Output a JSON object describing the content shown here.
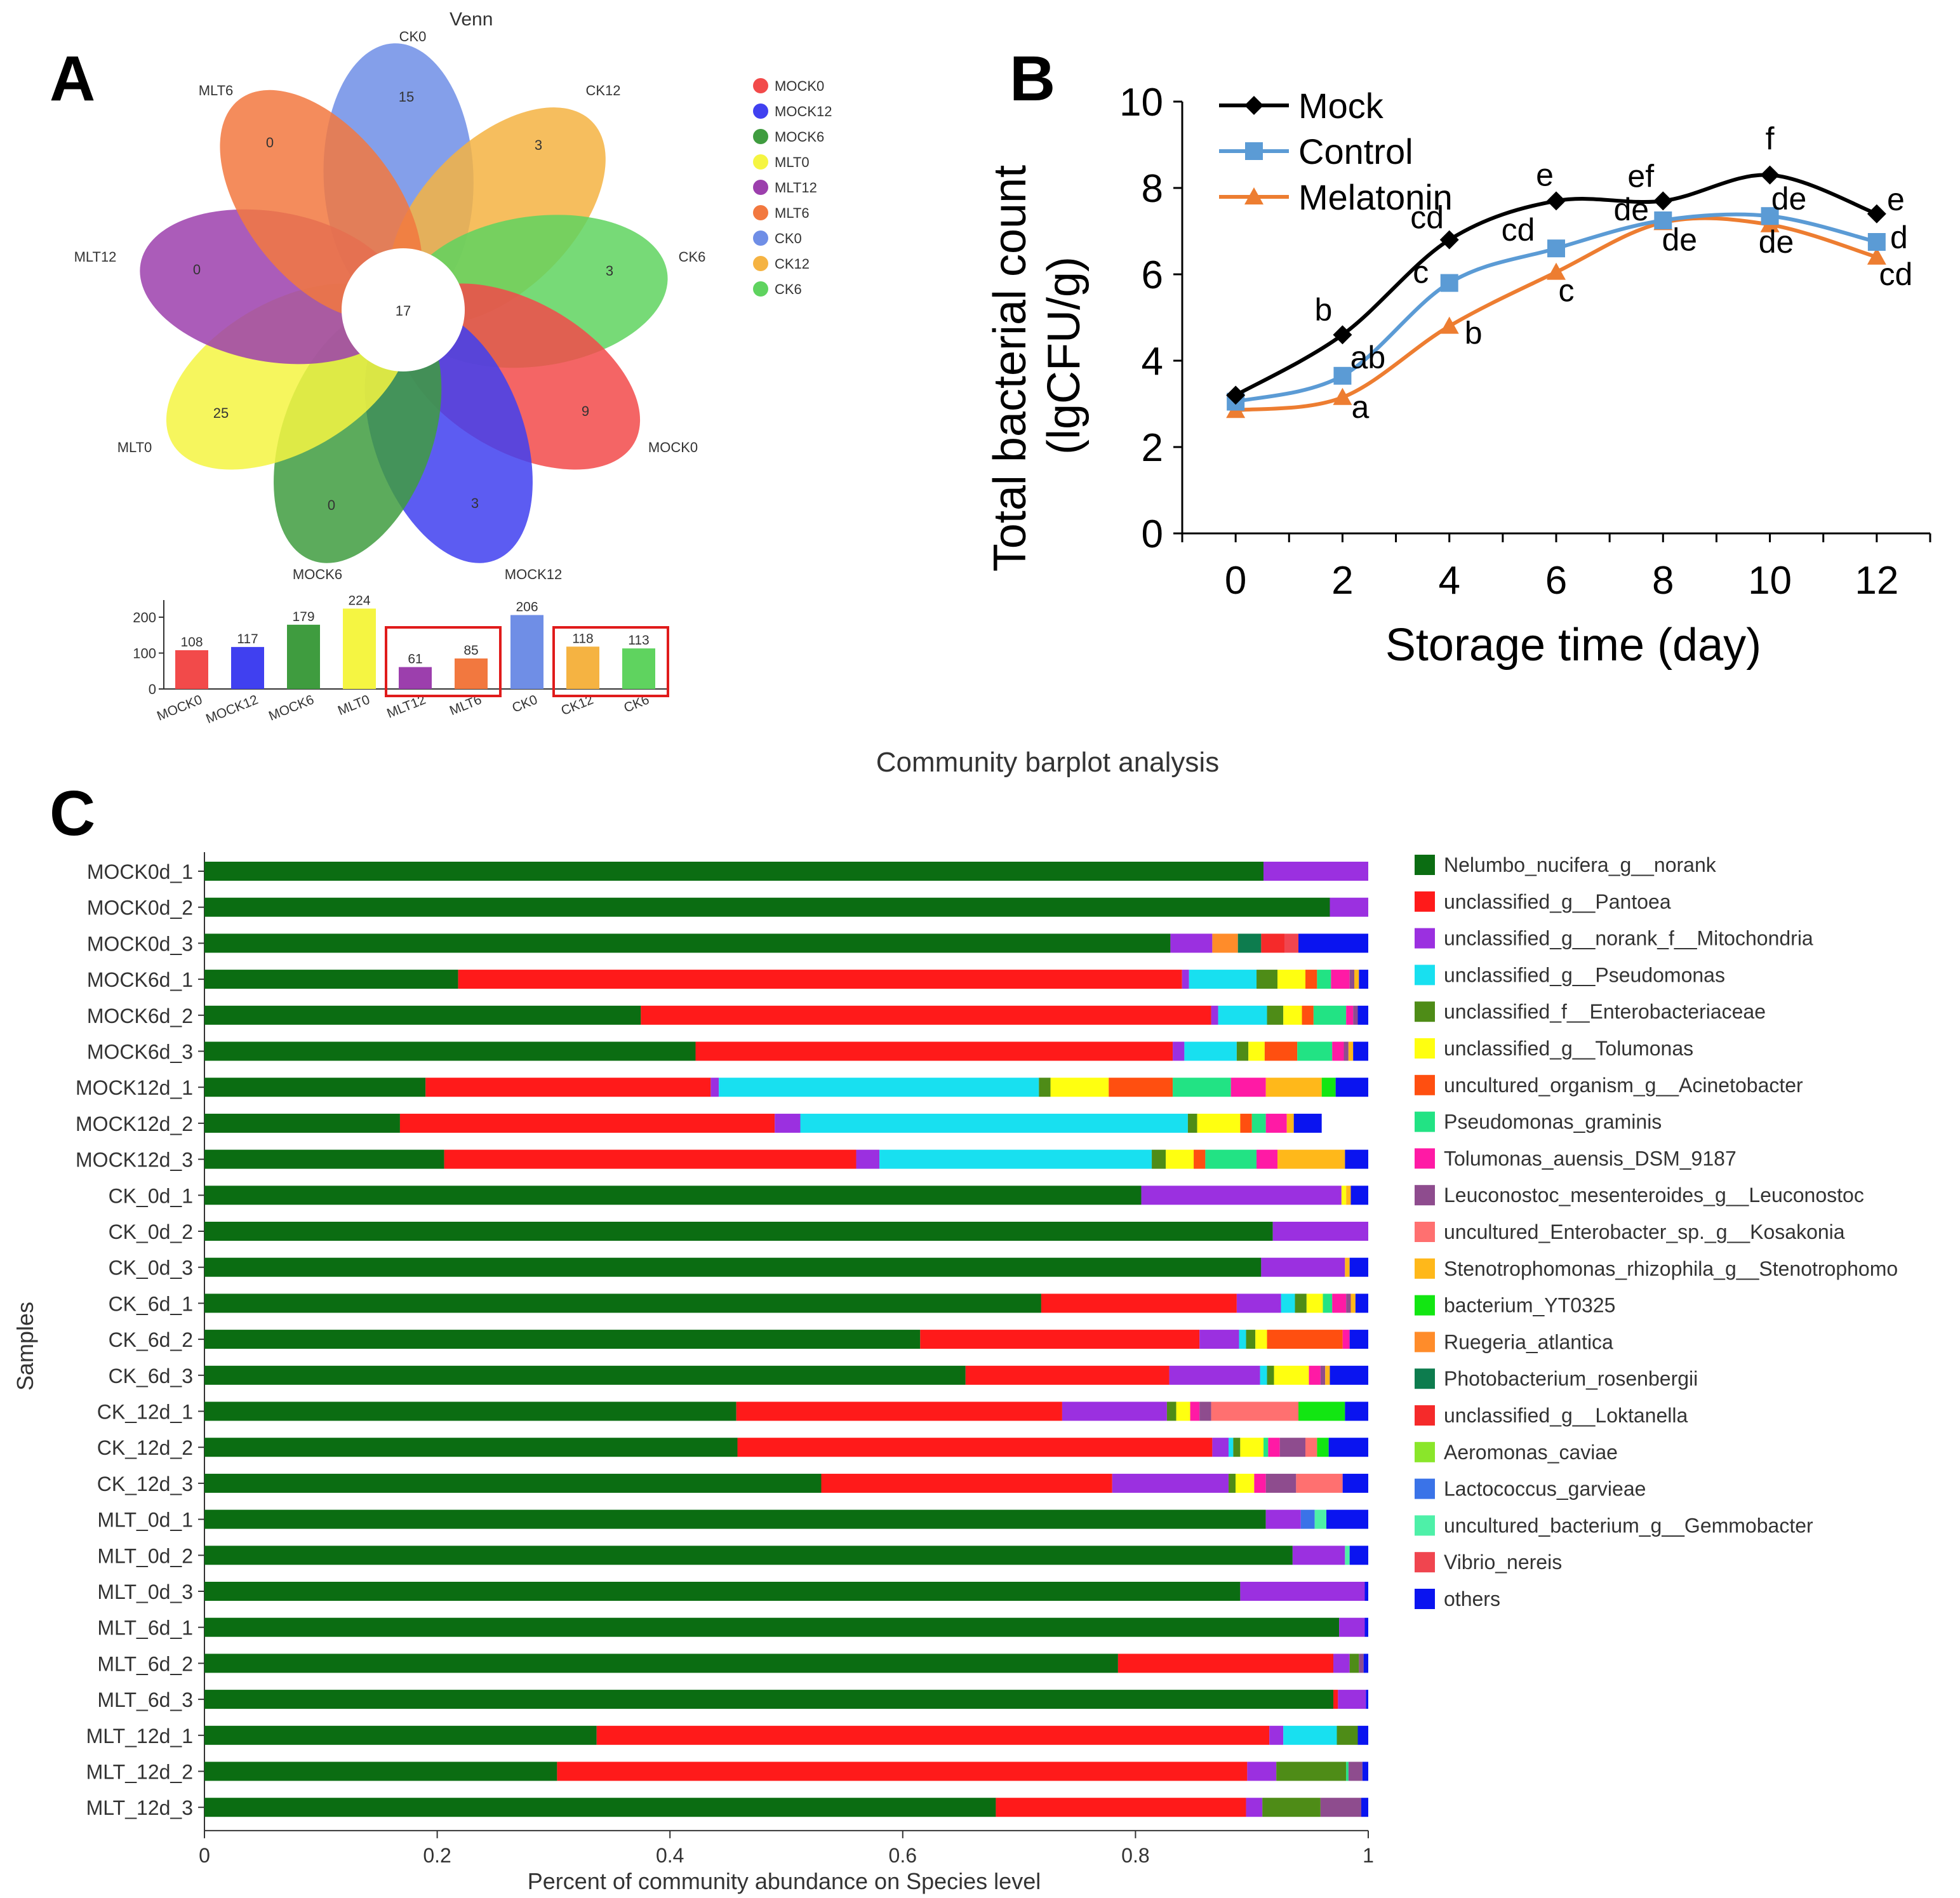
{
  "panel_labels": {
    "a": "A",
    "b": "B",
    "c": "C"
  },
  "colors": {
    "MOCK0": "#f24a4a",
    "MOCK12": "#4040f0",
    "MOCK6": "#3f9c3f",
    "MLT0": "#f5f542",
    "MLT12": "#9c3fad",
    "MLT6": "#f2783f",
    "CK0": "#6f8ee6",
    "CK12": "#f5b342",
    "CK6": "#5fd35f",
    "mock_line": "#000000",
    "control_line": "#5b9bd5",
    "melatonin_line": "#ed7d31",
    "highlight_box": "#e01b1b"
  },
  "chart_data": [
    {
      "type": "venn",
      "title": "Venn",
      "center_label": "17",
      "petals": [
        {
          "set": "CK0",
          "label": "CK0",
          "unique": "15"
        },
        {
          "set": "CK12",
          "label": "CK12",
          "unique": "3"
        },
        {
          "set": "CK6",
          "label": "CK6",
          "unique": "3"
        },
        {
          "set": "MOCK0",
          "label": "MOCK0",
          "unique": "9"
        },
        {
          "set": "MOCK12",
          "label": "MOCK12",
          "unique": "3"
        },
        {
          "set": "MOCK6",
          "label": "MOCK6",
          "unique": "0"
        },
        {
          "set": "MLT0",
          "label": "MLT0",
          "unique": "25"
        },
        {
          "set": "MLT12",
          "label": "MLT12",
          "unique": "0"
        },
        {
          "set": "MLT6",
          "label": "MLT6",
          "unique": "0"
        }
      ],
      "legend": [
        "MOCK0",
        "MOCK12",
        "MOCK6",
        "MLT0",
        "MLT12",
        "MLT6",
        "CK0",
        "CK12",
        "CK6"
      ]
    },
    {
      "type": "bar",
      "categories": [
        "MOCK0",
        "MOCK12",
        "MOCK6",
        "MLT0",
        "MLT12",
        "MLT6",
        "CK0",
        "CK12",
        "CK6"
      ],
      "values": [
        108,
        117,
        179,
        224,
        61,
        85,
        206,
        118,
        113
      ],
      "value_labels": [
        "108",
        "117",
        "179",
        "224",
        "61",
        "85",
        "206",
        "118",
        "113"
      ],
      "yticks": [
        "0",
        "100",
        "200"
      ],
      "ylim": [
        0,
        230
      ],
      "highlighted_groups": [
        [
          "MLT12",
          "MLT6"
        ],
        [
          "CK12",
          "CK6"
        ]
      ]
    },
    {
      "type": "line",
      "x": [
        0,
        2,
        4,
        6,
        8,
        10,
        12
      ],
      "xlim": [
        -1,
        13
      ],
      "ylim": [
        0,
        10
      ],
      "xticks": [
        "0",
        "2",
        "4",
        "6",
        "8",
        "10",
        "12"
      ],
      "yticks": [
        "0",
        "2",
        "4",
        "6",
        "8",
        "10"
      ],
      "xlabel": "Storage time (day)",
      "ylabel_line1": "Total bacterial count",
      "ylabel_line2": "(lgCFU/g)",
      "series": [
        {
          "name": "Mock",
          "marker": "diamond",
          "values": [
            3.2,
            4.6,
            6.8,
            7.7,
            7.7,
            8.3,
            7.4
          ],
          "labels": [
            "",
            "b",
            "cd",
            "e",
            "ef",
            "f",
            "e"
          ]
        },
        {
          "name": "Control",
          "marker": "square",
          "values": [
            3.05,
            3.65,
            5.8,
            6.6,
            7.25,
            7.35,
            6.75
          ],
          "labels": [
            "",
            "ab",
            "c",
            "cd",
            "de",
            "de",
            "d"
          ]
        },
        {
          "name": "Melatonin",
          "marker": "triangle",
          "values": [
            2.85,
            3.15,
            4.8,
            6.05,
            7.2,
            7.15,
            6.4
          ],
          "labels": [
            "",
            "a",
            "b",
            "c",
            "de",
            "de",
            "cd"
          ]
        }
      ]
    },
    {
      "type": "stacked-bar-horizontal",
      "title": "Community barplot analysis",
      "xlabel": "Percent of community abundance on Species level",
      "ylabel": "Samples",
      "xticks": [
        "0",
        "0.2",
        "0.4",
        "0.6",
        "0.8",
        "1"
      ],
      "xlim": [
        0,
        1
      ],
      "species": [
        {
          "name": "Nelumbo_nucifera_g__norank",
          "color": "#0b6d12"
        },
        {
          "name": "unclassified_g__Pantoea",
          "color": "#ff1a1a"
        },
        {
          "name": "unclassified_g__norank_f__Mitochondria",
          "color": "#9b30e0"
        },
        {
          "name": "unclassified_g__Pseudomonas",
          "color": "#18e0f0"
        },
        {
          "name": "unclassified_f__Enterobacteriaceae",
          "color": "#4e8c17"
        },
        {
          "name": "unclassified_g__Tolumonas",
          "color": "#ffff10"
        },
        {
          "name": "uncultured_organism_g__Acinetobacter",
          "color": "#ff4f10"
        },
        {
          "name": "Pseudomonas_graminis",
          "color": "#22e384"
        },
        {
          "name": "Tolumonas_auensis_DSM_9187",
          "color": "#ff1aa5"
        },
        {
          "name": "Leuconostoc_mesenteroides_g__Leuconostoc",
          "color": "#8e4c8e"
        },
        {
          "name": "uncultured_Enterobacter_sp._g__Kosakonia",
          "color": "#ff7070"
        },
        {
          "name": "Stenotrophomonas_rhizophila_g__Stenotrophomo",
          "color": "#ffb81a"
        },
        {
          "name": "bacterium_YT0325",
          "color": "#12e612"
        },
        {
          "name": "Ruegeria_atlantica",
          "color": "#ff8c2a"
        },
        {
          "name": "Photobacterium_rosenbergii",
          "color": "#0d7c4e"
        },
        {
          "name": "unclassified_g__Loktanella",
          "color": "#f52a2a"
        },
        {
          "name": "Aeromonas_caviae",
          "color": "#8ae62a"
        },
        {
          "name": "Lactococcus_garvieae",
          "color": "#3a73e8"
        },
        {
          "name": "uncultured_bacterium_g__Gemmobacter",
          "color": "#4ef0a8"
        },
        {
          "name": "Vibrio_nereis",
          "color": "#f0454f"
        },
        {
          "name": "others",
          "color": "#0a14f0"
        }
      ],
      "samples": [
        {
          "name": "MOCK0d_1",
          "values": [
            0.91,
            0,
            0.09,
            0,
            0,
            0,
            0,
            0,
            0,
            0,
            0,
            0,
            0,
            0,
            0,
            0,
            0,
            0,
            0,
            0,
            0
          ]
        },
        {
          "name": "MOCK0d_2",
          "values": [
            0.967,
            0,
            0.033,
            0,
            0,
            0,
            0,
            0,
            0,
            0,
            0,
            0,
            0,
            0,
            0,
            0,
            0,
            0,
            0,
            0,
            0
          ]
        },
        {
          "name": "MOCK0d_3",
          "values": [
            0.83,
            0,
            0.036,
            0,
            0,
            0,
            0,
            0,
            0,
            0,
            0,
            0,
            0,
            0.022,
            0.02,
            0.02,
            0,
            0,
            0,
            0.012,
            0.06
          ]
        },
        {
          "name": "MOCK6d_1",
          "values": [
            0.218,
            0.622,
            0.006,
            0.058,
            0.018,
            0.024,
            0.01,
            0.012,
            0.016,
            0.004,
            0,
            0.004,
            0,
            0,
            0,
            0,
            0,
            0,
            0,
            0,
            0.008
          ]
        },
        {
          "name": "MOCK6d_2",
          "values": [
            0.375,
            0.49,
            0.006,
            0.042,
            0.014,
            0.016,
            0.01,
            0.028,
            0.006,
            0.004,
            0,
            0,
            0,
            0,
            0,
            0,
            0,
            0,
            0,
            0,
            0.009
          ]
        },
        {
          "name": "MOCK6d_3",
          "values": [
            0.422,
            0.41,
            0.01,
            0.045,
            0.01,
            0.014,
            0.028,
            0.03,
            0.01,
            0.004,
            0,
            0.004,
            0,
            0,
            0,
            0,
            0,
            0,
            0,
            0,
            0.013
          ]
        },
        {
          "name": "MOCK12d_1",
          "values": [
            0.19,
            0.245,
            0.007,
            0.275,
            0.01,
            0.05,
            0.055,
            0.05,
            0.03,
            0,
            0,
            0.048,
            0.012,
            0,
            0,
            0,
            0,
            0,
            0,
            0,
            0.028
          ]
        },
        {
          "name": "MOCK12d_2",
          "values": [
            0.168,
            0.322,
            0.022,
            0.333,
            0.008,
            0.037,
            0.01,
            0.012,
            0.018,
            0,
            0,
            0.006,
            0,
            0,
            0,
            0,
            0,
            0,
            0,
            0,
            0.024
          ]
        },
        {
          "name": "MOCK12d_3",
          "values": [
            0.206,
            0.354,
            0.02,
            0.234,
            0.012,
            0.024,
            0.01,
            0.044,
            0.018,
            0,
            0,
            0.058,
            0,
            0,
            0,
            0,
            0,
            0,
            0,
            0,
            0.02
          ]
        },
        {
          "name": "CK_0d_1",
          "values": [
            0.805,
            0,
            0.172,
            0,
            0,
            0.004,
            0,
            0,
            0,
            0,
            0,
            0.004,
            0,
            0,
            0,
            0,
            0,
            0,
            0,
            0,
            0.015
          ]
        },
        {
          "name": "CK_0d_2",
          "values": [
            0.918,
            0,
            0.082,
            0,
            0,
            0,
            0,
            0,
            0,
            0,
            0,
            0,
            0,
            0,
            0,
            0,
            0,
            0,
            0,
            0,
            0
          ]
        },
        {
          "name": "CK_0d_3",
          "values": [
            0.908,
            0,
            0.072,
            0,
            0,
            0,
            0,
            0,
            0,
            0,
            0,
            0.004,
            0,
            0,
            0,
            0,
            0,
            0,
            0,
            0,
            0.016
          ]
        },
        {
          "name": "CK_6d_1",
          "values": [
            0.719,
            0.168,
            0.038,
            0.012,
            0.01,
            0.014,
            0,
            0.008,
            0.012,
            0.004,
            0,
            0.004,
            0,
            0,
            0,
            0,
            0,
            0,
            0,
            0,
            0.011
          ]
        },
        {
          "name": "CK_6d_2",
          "values": [
            0.615,
            0.24,
            0.034,
            0.006,
            0.008,
            0.01,
            0.065,
            0,
            0.006,
            0,
            0,
            0,
            0,
            0,
            0,
            0,
            0,
            0,
            0,
            0,
            0.016
          ]
        },
        {
          "name": "CK_6d_3",
          "values": [
            0.654,
            0.175,
            0.078,
            0.006,
            0.006,
            0.03,
            0,
            0,
            0.01,
            0.004,
            0,
            0.004,
            0,
            0,
            0,
            0,
            0,
            0,
            0,
            0,
            0.033
          ]
        },
        {
          "name": "CK_12d_1",
          "values": [
            0.457,
            0.28,
            0.09,
            0,
            0.008,
            0.012,
            0,
            0,
            0.008,
            0.01,
            0.075,
            0,
            0.04,
            0,
            0,
            0,
            0,
            0,
            0,
            0,
            0.02
          ]
        },
        {
          "name": "CK_12d_2",
          "values": [
            0.458,
            0.408,
            0.014,
            0.004,
            0.006,
            0.02,
            0,
            0.004,
            0.01,
            0.022,
            0.01,
            0,
            0.01,
            0,
            0,
            0,
            0,
            0,
            0,
            0,
            0.034
          ]
        },
        {
          "name": "CK_12d_3",
          "values": [
            0.53,
            0.25,
            0.1,
            0,
            0.006,
            0.016,
            0,
            0,
            0.01,
            0.026,
            0.04,
            0,
            0,
            0,
            0,
            0,
            0,
            0,
            0,
            0,
            0.022
          ]
        },
        {
          "name": "MLT_0d_1",
          "values": [
            0.912,
            0,
            0.03,
            0,
            0,
            0,
            0,
            0,
            0,
            0,
            0,
            0,
            0,
            0,
            0,
            0,
            0,
            0.012,
            0.01,
            0,
            0.036
          ]
        },
        {
          "name": "MLT_0d_2",
          "values": [
            0.935,
            0,
            0.045,
            0,
            0,
            0,
            0,
            0,
            0,
            0,
            0,
            0,
            0,
            0,
            0,
            0,
            0,
            0,
            0.004,
            0,
            0.016
          ]
        },
        {
          "name": "MLT_0d_3",
          "values": [
            0.89,
            0,
            0.107,
            0,
            0,
            0,
            0,
            0,
            0,
            0,
            0,
            0,
            0,
            0,
            0,
            0,
            0,
            0,
            0,
            0,
            0.003
          ]
        },
        {
          "name": "MLT_6d_1",
          "values": [
            0.975,
            0,
            0.022,
            0,
            0,
            0,
            0,
            0,
            0,
            0,
            0,
            0,
            0,
            0,
            0,
            0,
            0,
            0,
            0,
            0,
            0.003
          ]
        },
        {
          "name": "MLT_6d_2",
          "values": [
            0.785,
            0.185,
            0.014,
            0,
            0.008,
            0,
            0,
            0,
            0,
            0.004,
            0,
            0,
            0,
            0,
            0,
            0,
            0,
            0,
            0,
            0,
            0.004
          ]
        },
        {
          "name": "MLT_6d_3",
          "values": [
            0.97,
            0.004,
            0.024,
            0,
            0,
            0,
            0,
            0,
            0,
            0,
            0,
            0,
            0,
            0,
            0,
            0,
            0,
            0,
            0,
            0,
            0.002
          ]
        },
        {
          "name": "MLT_12d_1",
          "values": [
            0.337,
            0.578,
            0.012,
            0.046,
            0.018,
            0,
            0,
            0,
            0,
            0,
            0,
            0,
            0,
            0,
            0,
            0,
            0,
            0,
            0,
            0,
            0.009
          ]
        },
        {
          "name": "MLT_12d_2",
          "values": [
            0.303,
            0.593,
            0.025,
            0,
            0.06,
            0,
            0,
            0.002,
            0,
            0.012,
            0,
            0,
            0,
            0,
            0,
            0,
            0,
            0,
            0,
            0,
            0.005
          ]
        },
        {
          "name": "MLT_12d_3",
          "values": [
            0.68,
            0.215,
            0.014,
            0,
            0.05,
            0,
            0,
            0,
            0,
            0.035,
            0,
            0,
            0,
            0,
            0,
            0,
            0,
            0,
            0,
            0,
            0.006
          ]
        }
      ]
    }
  ]
}
